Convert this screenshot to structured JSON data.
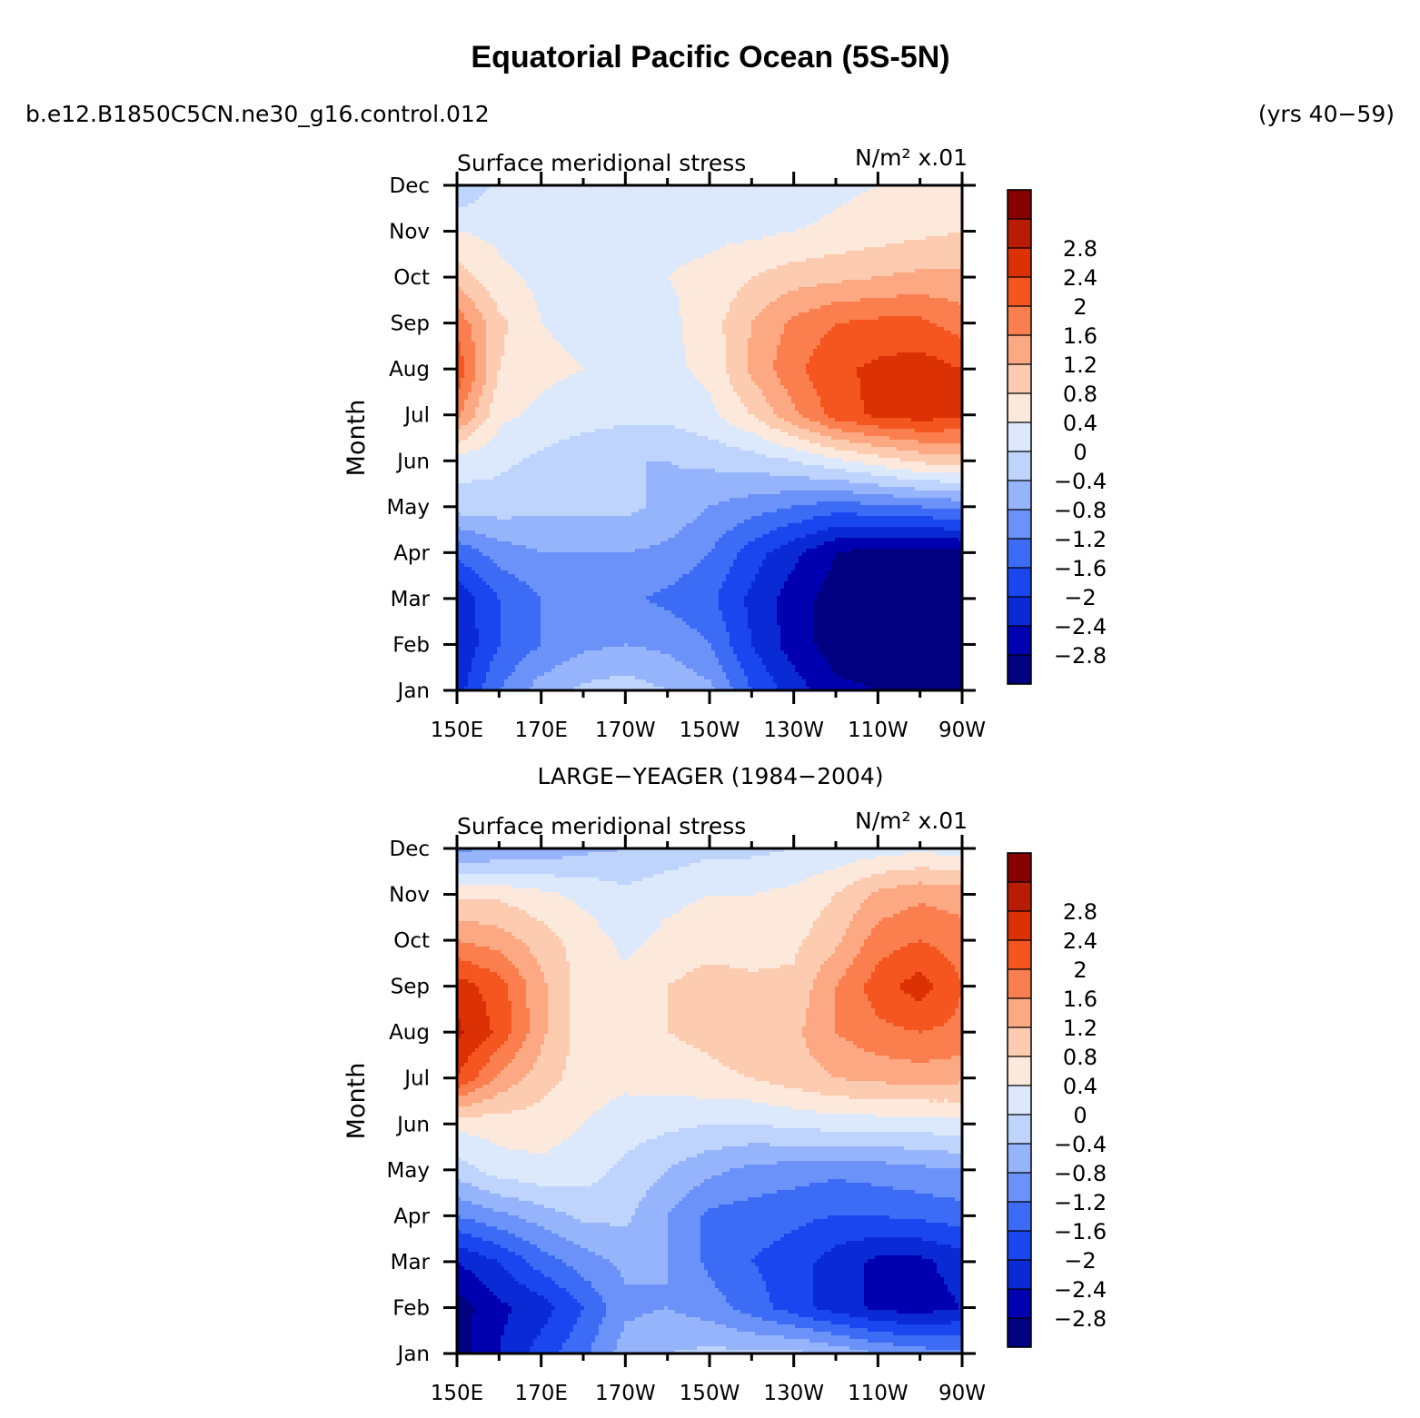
{
  "header": {
    "title": "Equatorial Pacific Ocean (5S-5N)",
    "case_name": "b.e12.B1850C5CN.ne30_g16.control.012",
    "years": "(yrs 40−59)"
  },
  "separator_label": "LARGE−YEAGER (1984−2004)",
  "colors": {
    "levels": [
      "#000080",
      "#0000b0",
      "#0a2ad6",
      "#1a46f0",
      "#3c6cf5",
      "#6a92f8",
      "#95b4fb",
      "#bed4fd",
      "#dce9fc",
      "#fde9dc",
      "#fdcbb0",
      "#fca882",
      "#fb7e4f",
      "#f5561f",
      "#dc3104",
      "#b81c04",
      "#870000"
    ]
  },
  "colorbar": {
    "labels": [
      "−2.8",
      "−2.4",
      "−2",
      "−1.6",
      "−1.2",
      "−0.8",
      "−0.4",
      "0",
      "0.4",
      "0.8",
      "1.2",
      "1.6",
      "2",
      "2.4",
      "2.8"
    ]
  },
  "chart_data": [
    {
      "type": "heatmap",
      "variable": "Surface meridional stress",
      "units": "N/m² x.01",
      "xlabel": "",
      "ylabel": "Month",
      "x_ticks": [
        "150E",
        "170E",
        "170W",
        "150W",
        "130W",
        "110W",
        "90W"
      ],
      "y_ticks": [
        "Jan",
        "Feb",
        "Mar",
        "Apr",
        "May",
        "Jun",
        "Jul",
        "Aug",
        "Sep",
        "Oct",
        "Nov",
        "Dec"
      ],
      "x_range_deg_east": [
        150,
        270
      ],
      "levels": [
        -2.8,
        -2.4,
        -2.0,
        -1.6,
        -1.2,
        -0.8,
        -0.4,
        0,
        0.4,
        0.8,
        1.2,
        1.6,
        2.0,
        2.4,
        2.8
      ],
      "x": [
        150,
        160,
        170,
        180,
        190,
        200,
        210,
        220,
        230,
        240,
        250,
        260,
        270
      ],
      "y": [
        "Jan",
        "Feb",
        "Mar",
        "Apr",
        "May",
        "Jun",
        "Jul",
        "Aug",
        "Sep",
        "Oct",
        "Nov",
        "Dec"
      ],
      "z": [
        [
          -2.2,
          -1.2,
          -0.6,
          -0.3,
          -0.2,
          -0.4,
          -0.7,
          -1.6,
          -2.2,
          -2.7,
          -2.8,
          -2.9,
          -3.0
        ],
        [
          -2.4,
          -1.6,
          -1.2,
          -0.9,
          -0.8,
          -0.9,
          -1.2,
          -2.0,
          -2.6,
          -3.0,
          -3.1,
          -3.2,
          -3.2
        ],
        [
          -2.3,
          -1.6,
          -1.2,
          -1.2,
          -1.1,
          -1.3,
          -1.5,
          -2.1,
          -2.6,
          -3.0,
          -3.2,
          -3.2,
          -3.1
        ],
        [
          -1.5,
          -1.0,
          -0.8,
          -0.8,
          -0.8,
          -0.9,
          -1.2,
          -1.8,
          -2.3,
          -2.8,
          -3.0,
          -3.0,
          -2.9
        ],
        [
          -0.2,
          -0.2,
          -0.3,
          -0.3,
          -0.3,
          -0.5,
          -0.8,
          -1.0,
          -1.2,
          -1.4,
          -1.3,
          -1.2,
          -1.1
        ],
        [
          0.2,
          0.1,
          -0.1,
          -0.3,
          -0.4,
          -0.4,
          -0.3,
          -0.2,
          0.0,
          0.3,
          0.6,
          0.9,
          1.0
        ],
        [
          1.7,
          0.5,
          0.3,
          0.2,
          0.1,
          0.1,
          0.3,
          0.8,
          1.5,
          2.2,
          2.5,
          2.6,
          2.5
        ],
        [
          2.3,
          0.8,
          0.5,
          0.4,
          0.3,
          0.3,
          0.5,
          1.3,
          1.9,
          2.3,
          2.5,
          2.6,
          2.4
        ],
        [
          1.9,
          0.9,
          0.4,
          0.3,
          0.3,
          0.3,
          0.6,
          1.2,
          1.7,
          2.0,
          2.1,
          2.1,
          1.8
        ],
        [
          1.0,
          0.5,
          0.3,
          0.3,
          0.3,
          0.4,
          0.5,
          0.8,
          1.0,
          1.1,
          1.2,
          1.3,
          1.3
        ],
        [
          0.4,
          0.3,
          0.2,
          0.2,
          0.3,
          0.3,
          0.3,
          0.3,
          0.4,
          0.5,
          0.6,
          0.7,
          0.8
        ],
        [
          -0.4,
          0.1,
          0.2,
          0.2,
          0.2,
          0.2,
          0.2,
          0.1,
          0.1,
          0.3,
          0.4,
          0.4,
          0.5
        ]
      ]
    },
    {
      "type": "heatmap",
      "variable": "Surface meridional stress",
      "units": "N/m² x.01",
      "xlabel": "",
      "ylabel": "Month",
      "x_ticks": [
        "150E",
        "170E",
        "170W",
        "150W",
        "130W",
        "110W",
        "90W"
      ],
      "y_ticks": [
        "Jan",
        "Feb",
        "Mar",
        "Apr",
        "May",
        "Jun",
        "Jul",
        "Aug",
        "Sep",
        "Oct",
        "Nov",
        "Dec"
      ],
      "x_range_deg_east": [
        150,
        270
      ],
      "levels": [
        -2.8,
        -2.4,
        -2.0,
        -1.6,
        -1.2,
        -0.8,
        -0.4,
        0,
        0.4,
        0.8,
        1.2,
        1.6,
        2.0,
        2.4,
        2.8
      ],
      "x": [
        150,
        160,
        170,
        180,
        190,
        200,
        210,
        220,
        230,
        240,
        250,
        260,
        270
      ],
      "y": [
        "Jan",
        "Feb",
        "Mar",
        "Apr",
        "May",
        "Jun",
        "Jul",
        "Aug",
        "Sep",
        "Oct",
        "Nov",
        "Dec"
      ],
      "z": [
        [
          -3.0,
          -2.4,
          -1.8,
          -1.3,
          -0.6,
          -0.4,
          -0.3,
          -0.3,
          -0.3,
          -0.5,
          -0.8,
          -1.0,
          -1.1
        ],
        [
          -3.0,
          -2.5,
          -2.2,
          -1.6,
          -0.9,
          -0.8,
          -1.0,
          -1.4,
          -1.8,
          -2.2,
          -2.5,
          -2.6,
          -2.4
        ],
        [
          -2.4,
          -2.0,
          -1.4,
          -1.0,
          -0.7,
          -0.8,
          -1.3,
          -1.6,
          -1.8,
          -2.2,
          -2.5,
          -2.5,
          -2.2
        ],
        [
          -1.2,
          -0.9,
          -0.6,
          -0.3,
          -0.3,
          -0.8,
          -1.3,
          -1.4,
          -1.5,
          -1.6,
          -1.6,
          -1.5,
          -1.4
        ],
        [
          -0.2,
          0.2,
          0.3,
          0.2,
          -0.1,
          -0.4,
          -0.7,
          -0.9,
          -1.0,
          -1.1,
          -1.0,
          -0.9,
          -0.8
        ],
        [
          0.5,
          0.6,
          0.6,
          0.4,
          0.2,
          0.1,
          0.0,
          0.0,
          0.1,
          0.2,
          0.2,
          0.2,
          0.3
        ],
        [
          2.4,
          1.5,
          1.0,
          0.6,
          0.5,
          0.6,
          0.7,
          0.8,
          1.0,
          1.2,
          1.3,
          1.4,
          1.3
        ],
        [
          2.9,
          2.3,
          1.3,
          0.6,
          0.6,
          0.8,
          0.9,
          1.1,
          1.1,
          1.6,
          1.9,
          2.0,
          1.9
        ],
        [
          2.6,
          2.2,
          1.3,
          0.6,
          0.5,
          0.8,
          1.0,
          0.9,
          0.9,
          1.6,
          2.2,
          2.6,
          2.0
        ],
        [
          1.6,
          1.4,
          1.0,
          0.6,
          0.3,
          0.5,
          0.6,
          0.6,
          0.7,
          1.1,
          1.8,
          2.0,
          1.8
        ],
        [
          0.7,
          0.7,
          0.5,
          0.3,
          0.1,
          0.3,
          0.4,
          0.4,
          0.5,
          0.8,
          1.3,
          1.5,
          1.4
        ],
        [
          -0.9,
          -0.8,
          -0.7,
          -0.5,
          -0.4,
          -0.3,
          -0.1,
          -0.1,
          0.0,
          0.1,
          0.2,
          0.3,
          0.2
        ]
      ]
    }
  ]
}
